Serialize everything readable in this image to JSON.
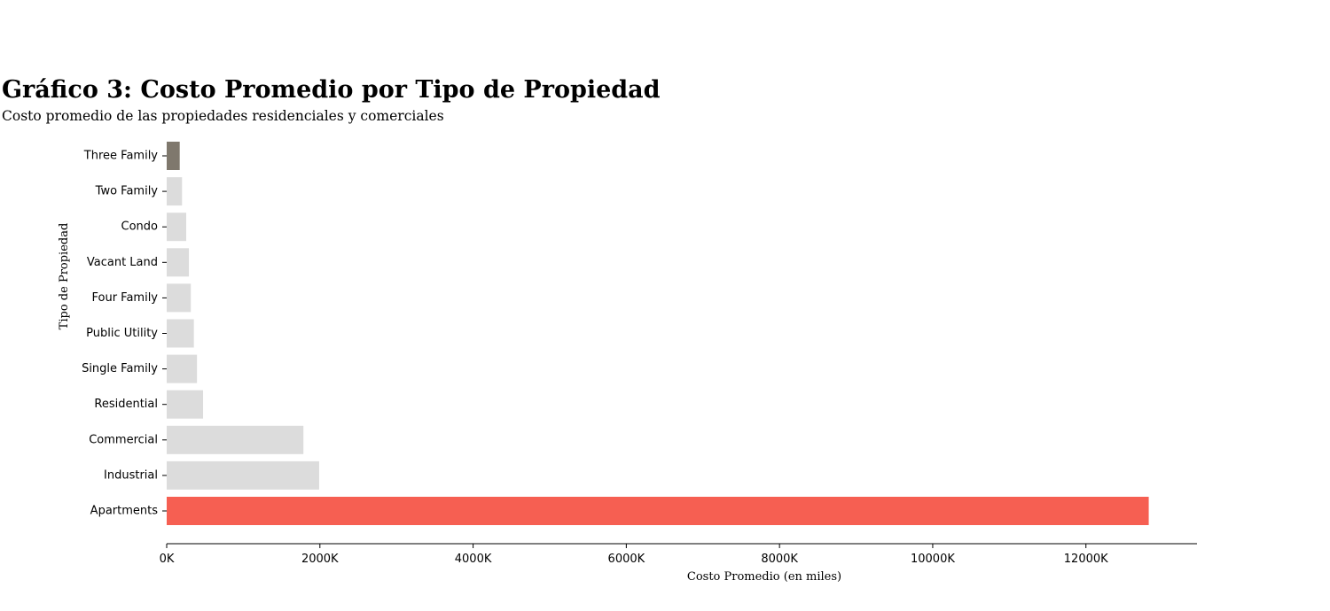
{
  "chart_data": {
    "type": "bar",
    "orientation": "horizontal",
    "title": "Gráfico 3: Costo Promedio por Tipo de Propiedad",
    "subtitle": "Costo promedio de las propiedades residenciales y comerciales",
    "xlabel": "Costo Promedio (en miles)",
    "ylabel": "Tipo de Propiedad",
    "xlim": [
      0,
      13450
    ],
    "x_ticks": [
      0,
      2000,
      4000,
      6000,
      8000,
      10000,
      12000
    ],
    "x_tick_labels": [
      "0K",
      "2000K",
      "4000K",
      "6000K",
      "8000K",
      "10000K",
      "12000K"
    ],
    "categories": [
      "Three Family",
      "Two Family",
      "Condo",
      "Vacant Land",
      "Four Family",
      "Public Utility",
      "Single Family",
      "Residential",
      "Commercial",
      "Industrial",
      "Apartments"
    ],
    "values": [
      170,
      200,
      255,
      290,
      315,
      355,
      395,
      475,
      1785,
      1990,
      12820
    ],
    "colors": [
      "#7f786d",
      "#dcdcdc",
      "#dcdcdc",
      "#dcdcdc",
      "#dcdcdc",
      "#dcdcdc",
      "#dcdcdc",
      "#dcdcdc",
      "#dcdcdc",
      "#dcdcdc",
      "#f65f52"
    ],
    "grid": false,
    "legend": "none"
  }
}
